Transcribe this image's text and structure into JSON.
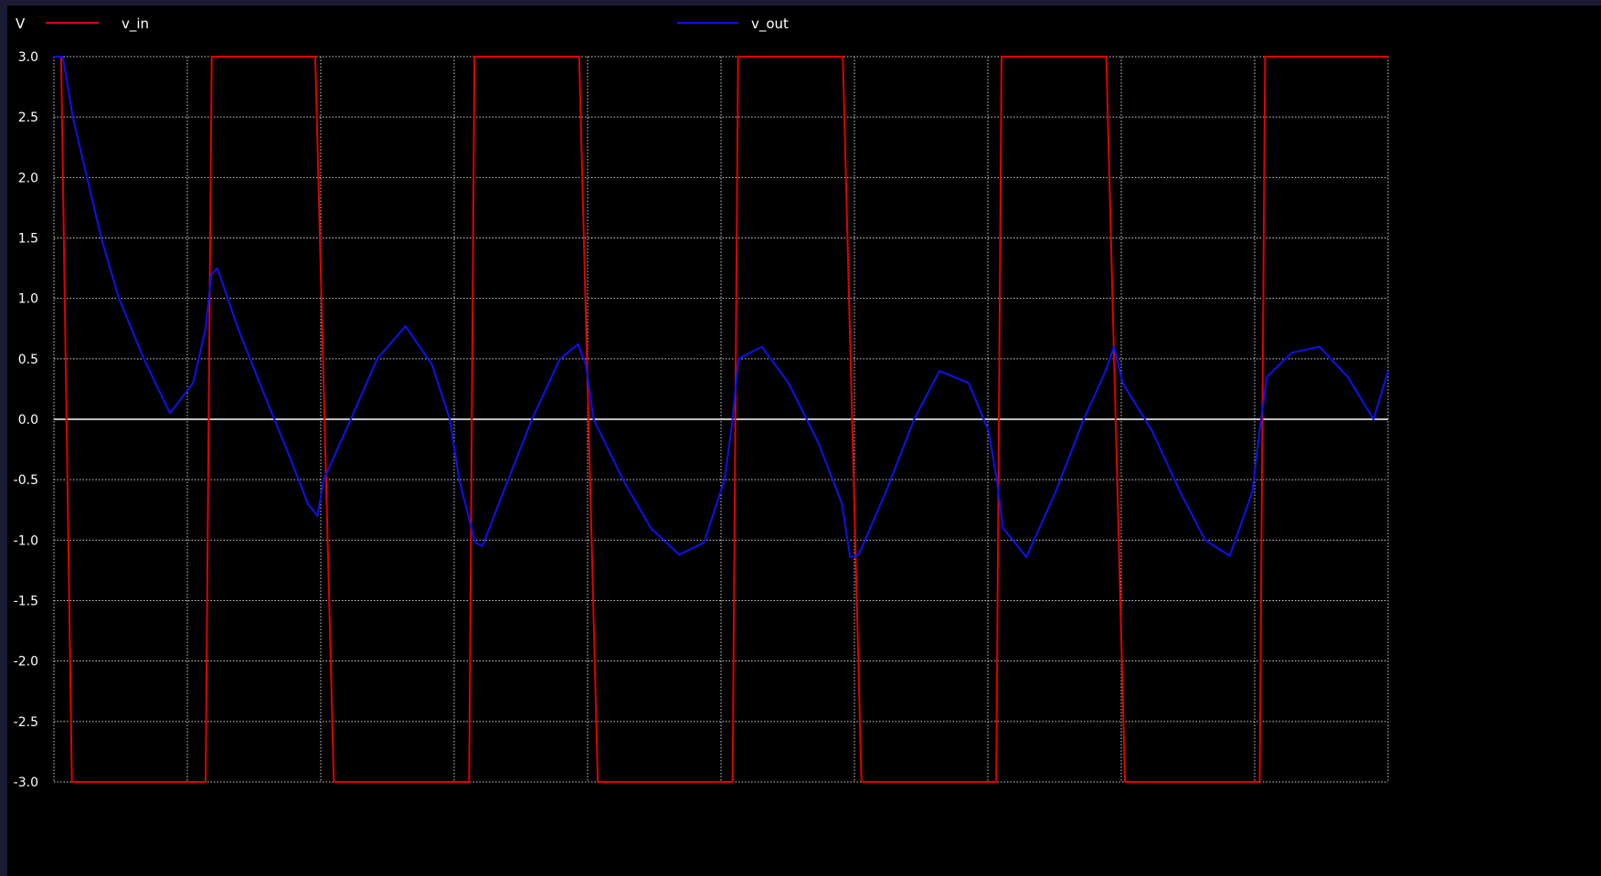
{
  "chart_data": {
    "type": "line",
    "ylabel": "V",
    "ylim": [
      -3.0,
      3.0
    ],
    "xlim": [
      0,
      1
    ],
    "yticks": [
      "3.0",
      "2.5",
      "2.0",
      "1.5",
      "1.0",
      "0.5",
      "0.0",
      "-0.5",
      "-1.0",
      "-1.5",
      "-2.0",
      "-2.5",
      "-3.0"
    ],
    "grid": true,
    "legend_placement": "top",
    "series": [
      {
        "name": "v_in",
        "color": "#e00000",
        "x": [
          0.0,
          0.0054,
          0.0135,
          0.1137,
          0.1183,
          0.1959,
          0.2098,
          0.3112,
          0.3152,
          0.3937,
          0.4077,
          0.5087,
          0.5128,
          0.5913,
          0.6053,
          0.7063,
          0.7103,
          0.7888,
          0.8028,
          0.9038,
          0.9078,
          1.0
        ],
        "values": [
          3.0,
          3.0,
          -3.0,
          -3.0,
          3.0,
          3.0,
          -3.0,
          -3.0,
          3.0,
          3.0,
          -3.0,
          -3.0,
          3.0,
          3.0,
          -3.0,
          -3.0,
          3.0,
          3.0,
          -3.0,
          -3.0,
          3.0,
          3.0
        ]
      },
      {
        "name": "v_out",
        "color": "#1010f0",
        "x": [
          0.0,
          0.0065,
          0.009,
          0.0142,
          0.0248,
          0.0355,
          0.0488,
          0.0674,
          0.087,
          0.1043,
          0.1137,
          0.118,
          0.1225,
          0.1381,
          0.156,
          0.1745,
          0.1905,
          0.1975,
          0.2022,
          0.2225,
          0.2423,
          0.2635,
          0.2835,
          0.2967,
          0.3038,
          0.3157,
          0.3211,
          0.3387,
          0.3583,
          0.3793,
          0.3929,
          0.3988,
          0.4045,
          0.4265,
          0.4474,
          0.4686,
          0.4872,
          0.5027,
          0.5087,
          0.5131,
          0.5306,
          0.5506,
          0.5732,
          0.5907,
          0.5968,
          0.6032,
          0.6236,
          0.6448,
          0.6637,
          0.6856,
          0.7007,
          0.7067,
          0.7114,
          0.7289,
          0.7508,
          0.7719,
          0.7883,
          0.7945,
          0.8011,
          0.8232,
          0.8441,
          0.8629,
          0.8813,
          0.8983,
          0.9036,
          0.9091,
          0.9277,
          0.9485,
          0.9698,
          0.9891,
          1.0
        ],
        "values": [
          3.0,
          3.0,
          2.85,
          2.5,
          2.0,
          1.5,
          1.0,
          0.5,
          0.05,
          0.3,
          0.75,
          1.2,
          1.25,
          0.75,
          0.25,
          -0.25,
          -0.7,
          -0.8,
          -0.5,
          0.0,
          0.5,
          0.77,
          0.45,
          0.0,
          -0.5,
          -1.02,
          -1.05,
          -0.55,
          0.0,
          0.5,
          0.62,
          0.45,
          0.0,
          -0.5,
          -0.9,
          -1.12,
          -1.02,
          -0.5,
          0.0,
          0.5,
          0.6,
          0.3,
          -0.2,
          -0.7,
          -1.14,
          -1.12,
          -0.6,
          0.0,
          0.4,
          0.3,
          -0.1,
          -0.5,
          -0.9,
          -1.14,
          -0.6,
          0.0,
          0.4,
          0.6,
          0.3,
          -0.1,
          -0.6,
          -1.0,
          -1.13,
          -0.6,
          -0.1,
          0.35,
          0.55,
          0.6,
          0.35,
          0.0,
          0.4
        ]
      }
    ]
  }
}
